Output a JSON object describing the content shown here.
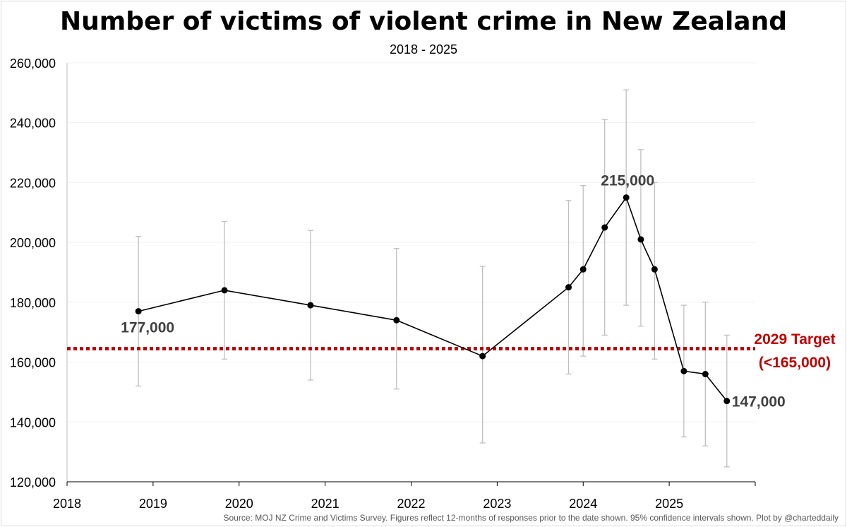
{
  "header": {
    "title": "Number of victims of violent crime in New Zealand",
    "subtitle": "2018 - 2025"
  },
  "footer": {
    "source": "Source: MOJ NZ Crime and Victims Survey. Figures reflect 12-months of responses prior to the date shown. 95% confidence intervals shown. Plot by @charteddaily"
  },
  "chart_data": {
    "type": "line",
    "title": "Number of victims of violent crime in New Zealand",
    "subtitle": "2018 - 2025",
    "xlabel": "",
    "ylabel": "",
    "xlim": [
      2018,
      2026
    ],
    "ylim": [
      120000,
      260000
    ],
    "x_ticks": [
      "2018",
      "2019",
      "2020",
      "2021",
      "2022",
      "2023",
      "2024",
      "2025"
    ],
    "y_ticks": [
      "120,000",
      "140,000",
      "160,000",
      "180,000",
      "200,000",
      "220,000",
      "240,000",
      "260,000"
    ],
    "grid": "horizontal",
    "series": [
      {
        "color": "#000000",
        "points": [
          {
            "x": 2018.83,
            "y": 177000,
            "lo": 152000,
            "hi": 202000
          },
          {
            "x": 2019.83,
            "y": 184000,
            "lo": 161000,
            "hi": 207000
          },
          {
            "x": 2020.83,
            "y": 179000,
            "lo": 154000,
            "hi": 204000
          },
          {
            "x": 2021.83,
            "y": 174000,
            "lo": 151000,
            "hi": 198000
          },
          {
            "x": 2022.83,
            "y": 162000,
            "lo": 133000,
            "hi": 192000
          },
          {
            "x": 2023.83,
            "y": 185000,
            "lo": 156000,
            "hi": 214000
          },
          {
            "x": 2024.0,
            "y": 191000,
            "lo": 162000,
            "hi": 219000
          },
          {
            "x": 2024.25,
            "y": 205000,
            "lo": 169000,
            "hi": 241000
          },
          {
            "x": 2024.5,
            "y": 215000,
            "lo": 179000,
            "hi": 251000
          },
          {
            "x": 2024.67,
            "y": 201000,
            "lo": 172000,
            "hi": 231000
          },
          {
            "x": 2024.83,
            "y": 191000,
            "lo": 161000,
            "hi": 220000
          },
          {
            "x": 2025.17,
            "y": 157000,
            "lo": 135000,
            "hi": 179000
          },
          {
            "x": 2025.42,
            "y": 156000,
            "lo": 132000,
            "hi": 180000
          },
          {
            "x": 2025.67,
            "y": 147000,
            "lo": 125000,
            "hi": 169000
          }
        ]
      }
    ],
    "error_bar_color": "#bfbfbf",
    "annotations": [
      {
        "text": "177,000",
        "x": 2018.83,
        "y": 177000
      },
      {
        "text": "215,000",
        "x": 2024.5,
        "y": 215000
      },
      {
        "text": "147,000",
        "x": 2025.67,
        "y": 147000
      }
    ],
    "target_line": {
      "y": 164500,
      "color": "#c00000",
      "style": "dotted",
      "label_line1": "2029 Target",
      "label_line2": "(<165,000)"
    }
  }
}
